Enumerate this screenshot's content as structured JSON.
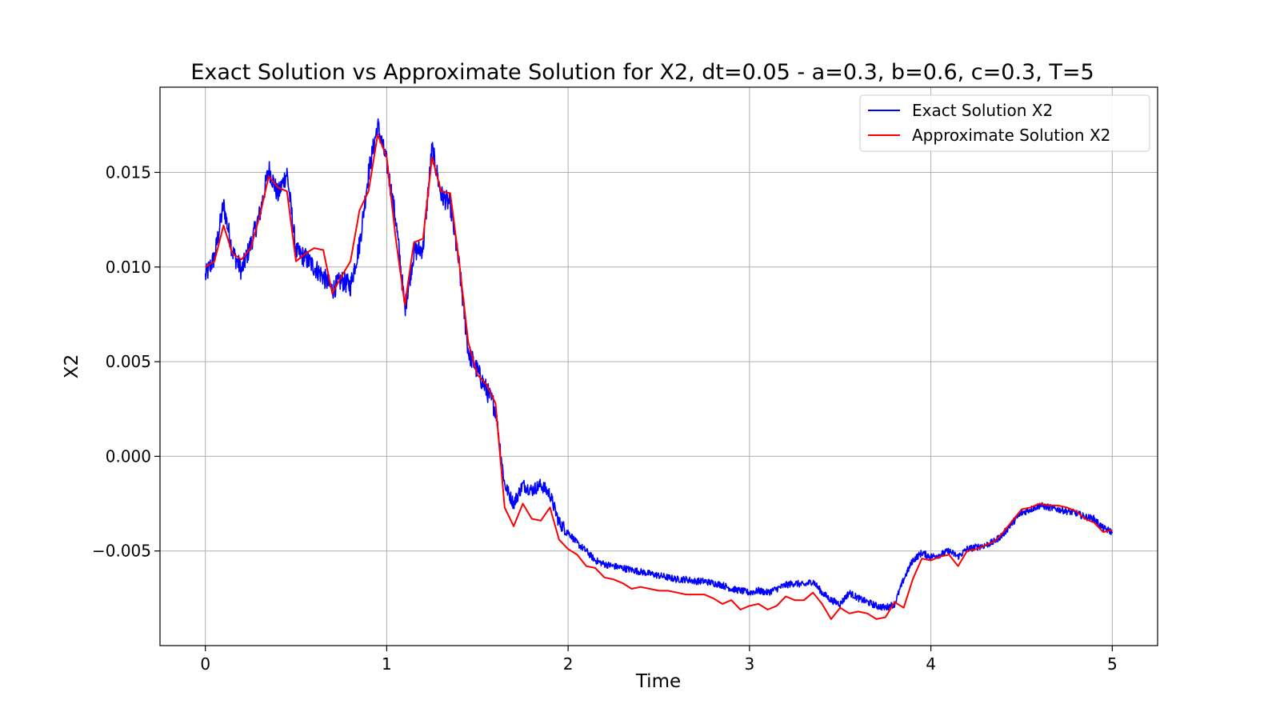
{
  "chart_data": {
    "type": "line",
    "title": "Exact Solution vs Approximate Solution for X2, dt=0.05 - a=0.3, b=0.6, c=0.3, T=5",
    "xlabel": "Time",
    "ylabel": "X2",
    "xlim": [
      -0.25,
      5.25
    ],
    "ylim": [
      -0.01,
      0.0195
    ],
    "x_ticks": [
      0,
      1,
      2,
      3,
      4,
      5
    ],
    "x_tick_labels": [
      "0",
      "1",
      "2",
      "3",
      "4",
      "5"
    ],
    "y_ticks": [
      -0.005,
      0.0,
      0.005,
      0.01,
      0.015
    ],
    "y_tick_labels": [
      "−0.005",
      "0.000",
      "0.005",
      "0.010",
      "0.015"
    ],
    "grid": true,
    "legend_position": "top-right",
    "series": [
      {
        "name": "Exact Solution X2",
        "color": "#0000ff",
        "style": "noisy",
        "x": [
          0.0,
          0.05,
          0.1,
          0.15,
          0.2,
          0.25,
          0.3,
          0.35,
          0.4,
          0.45,
          0.5,
          0.55,
          0.6,
          0.65,
          0.7,
          0.75,
          0.8,
          0.85,
          0.9,
          0.95,
          1.0,
          1.05,
          1.1,
          1.15,
          1.2,
          1.25,
          1.3,
          1.35,
          1.4,
          1.45,
          1.5,
          1.55,
          1.6,
          1.65,
          1.7,
          1.75,
          1.8,
          1.85,
          1.9,
          1.95,
          2.0,
          2.05,
          2.1,
          2.15,
          2.2,
          2.25,
          2.3,
          2.35,
          2.4,
          2.45,
          2.5,
          2.55,
          2.6,
          2.65,
          2.7,
          2.75,
          2.8,
          2.85,
          2.9,
          2.95,
          3.0,
          3.05,
          3.1,
          3.15,
          3.2,
          3.25,
          3.3,
          3.35,
          3.4,
          3.45,
          3.5,
          3.55,
          3.6,
          3.65,
          3.7,
          3.75,
          3.8,
          3.85,
          3.9,
          3.95,
          4.0,
          4.05,
          4.1,
          4.15,
          4.2,
          4.25,
          4.3,
          4.35,
          4.4,
          4.45,
          4.5,
          4.55,
          4.6,
          4.65,
          4.7,
          4.75,
          4.8,
          4.85,
          4.9,
          4.95,
          5.0
        ],
        "y": [
          0.0095,
          0.0105,
          0.0133,
          0.0108,
          0.0098,
          0.0112,
          0.0128,
          0.0152,
          0.0138,
          0.015,
          0.0108,
          0.0105,
          0.01,
          0.0095,
          0.0088,
          0.0093,
          0.009,
          0.0112,
          0.015,
          0.0175,
          0.0155,
          0.0125,
          0.0078,
          0.0108,
          0.011,
          0.0163,
          0.0138,
          0.0133,
          0.01,
          0.0055,
          0.0045,
          0.0035,
          0.0025,
          -0.0015,
          -0.0025,
          -0.0015,
          -0.0018,
          -0.0015,
          -0.002,
          -0.0035,
          -0.004,
          -0.0046,
          -0.005,
          -0.0055,
          -0.0057,
          -0.0058,
          -0.0059,
          -0.006,
          -0.0061,
          -0.0062,
          -0.0063,
          -0.0064,
          -0.0065,
          -0.0065,
          -0.0066,
          -0.0066,
          -0.0067,
          -0.0068,
          -0.007,
          -0.0071,
          -0.0072,
          -0.0071,
          -0.0072,
          -0.007,
          -0.0068,
          -0.0067,
          -0.0068,
          -0.0066,
          -0.0072,
          -0.0076,
          -0.0078,
          -0.0072,
          -0.0075,
          -0.0077,
          -0.0079,
          -0.008,
          -0.0078,
          -0.0065,
          -0.0055,
          -0.0051,
          -0.0053,
          -0.0052,
          -0.005,
          -0.0053,
          -0.0049,
          -0.0048,
          -0.0047,
          -0.0045,
          -0.0041,
          -0.0035,
          -0.003,
          -0.0028,
          -0.0026,
          -0.0027,
          -0.0028,
          -0.0029,
          -0.003,
          -0.0032,
          -0.0033,
          -0.0038,
          -0.004
        ]
      },
      {
        "name": "Approximate Solution X2",
        "color": "#ff0000",
        "style": "line",
        "x": [
          0.0,
          0.05,
          0.1,
          0.15,
          0.2,
          0.25,
          0.3,
          0.35,
          0.4,
          0.45,
          0.5,
          0.55,
          0.6,
          0.65,
          0.7,
          0.75,
          0.8,
          0.85,
          0.9,
          0.95,
          1.0,
          1.05,
          1.1,
          1.15,
          1.2,
          1.25,
          1.3,
          1.35,
          1.4,
          1.45,
          1.5,
          1.55,
          1.6,
          1.65,
          1.7,
          1.75,
          1.8,
          1.85,
          1.9,
          1.95,
          2.0,
          2.05,
          2.1,
          2.15,
          2.2,
          2.25,
          2.3,
          2.35,
          2.4,
          2.45,
          2.5,
          2.55,
          2.6,
          2.65,
          2.7,
          2.75,
          2.8,
          2.85,
          2.9,
          2.95,
          3.0,
          3.05,
          3.1,
          3.15,
          3.2,
          3.25,
          3.3,
          3.35,
          3.4,
          3.45,
          3.5,
          3.55,
          3.6,
          3.65,
          3.7,
          3.75,
          3.8,
          3.85,
          3.9,
          3.95,
          4.0,
          4.05,
          4.1,
          4.15,
          4.2,
          4.25,
          4.3,
          4.35,
          4.4,
          4.45,
          4.5,
          4.55,
          4.6,
          4.65,
          4.7,
          4.75,
          4.8,
          4.85,
          4.9,
          4.95,
          5.0
        ],
        "y": [
          0.01,
          0.0103,
          0.0122,
          0.0107,
          0.0104,
          0.011,
          0.0127,
          0.0148,
          0.0142,
          0.014,
          0.0103,
          0.0107,
          0.011,
          0.0109,
          0.0086,
          0.0095,
          0.0103,
          0.013,
          0.014,
          0.017,
          0.0158,
          0.0115,
          0.008,
          0.0113,
          0.0115,
          0.0158,
          0.014,
          0.0139,
          0.0102,
          0.006,
          0.0043,
          0.0038,
          0.0028,
          -0.0027,
          -0.0037,
          -0.0025,
          -0.0033,
          -0.0034,
          -0.0027,
          -0.0044,
          -0.0049,
          -0.0052,
          -0.0058,
          -0.0059,
          -0.0064,
          -0.0065,
          -0.0067,
          -0.007,
          -0.0069,
          -0.007,
          -0.0071,
          -0.0071,
          -0.0072,
          -0.0073,
          -0.0073,
          -0.0073,
          -0.0075,
          -0.0078,
          -0.0076,
          -0.0081,
          -0.0079,
          -0.0078,
          -0.0081,
          -0.0079,
          -0.0074,
          -0.0076,
          -0.0076,
          -0.0072,
          -0.0078,
          -0.0086,
          -0.008,
          -0.0083,
          -0.0082,
          -0.0083,
          -0.0086,
          -0.0085,
          -0.0077,
          -0.008,
          -0.0065,
          -0.0054,
          -0.0055,
          -0.0053,
          -0.0052,
          -0.0058,
          -0.005,
          -0.0049,
          -0.0047,
          -0.0045,
          -0.004,
          -0.0034,
          -0.0028,
          -0.0027,
          -0.0025,
          -0.0026,
          -0.0026,
          -0.0027,
          -0.0029,
          -0.0033,
          -0.0035,
          -0.004,
          -0.0039
        ]
      }
    ]
  }
}
